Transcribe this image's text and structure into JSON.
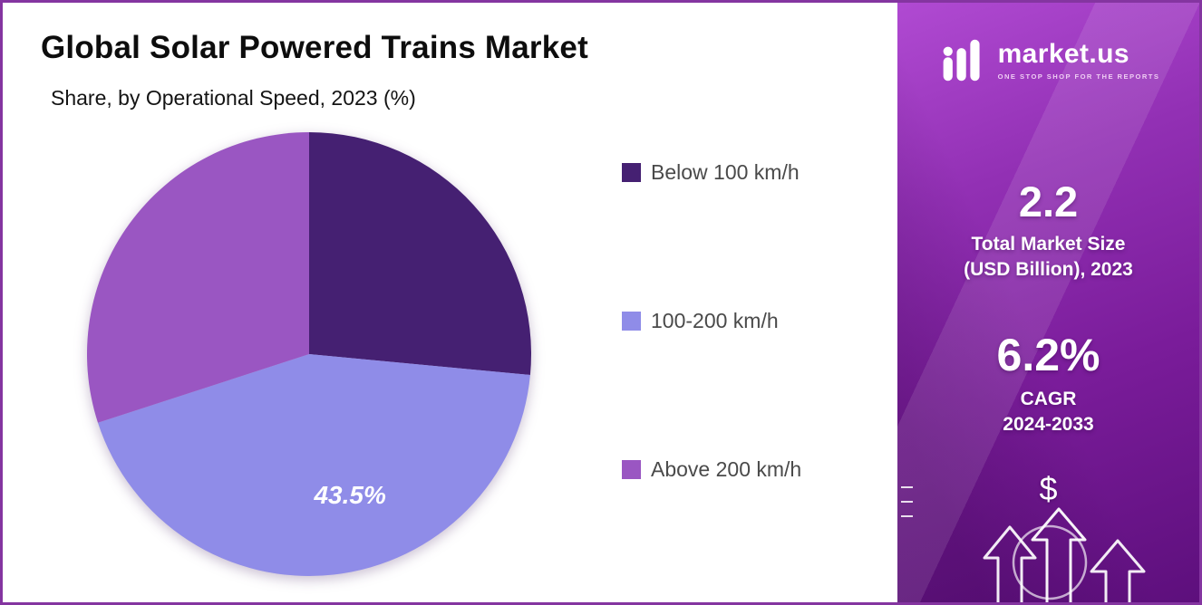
{
  "header": {
    "title": "Global Solar Powered Trains Market",
    "subtitle": "Share, by Operational Speed, 2023 (%)"
  },
  "chart_data": {
    "type": "pie",
    "title": "Global Solar Powered Trains Market",
    "subtitle": "Share, by Operational Speed, 2023 (%)",
    "labels": [
      "Below 100 km/h",
      "100-200 km/h",
      "Above 200 km/h"
    ],
    "values": [
      26.5,
      43.5,
      30
    ],
    "value_labels": [
      "",
      "43.5%",
      ""
    ],
    "colors": [
      "#452072",
      "#8f8ce8",
      "#9a56c2"
    ],
    "start_angle_deg": 0,
    "direction": "clockwise",
    "legend_position": "right"
  },
  "sidebar": {
    "brand": {
      "name": "market.us",
      "tagline": "ONE STOP SHOP FOR THE REPORTS"
    },
    "stats": [
      {
        "value": "2.2",
        "label_line1": "Total Market Size",
        "label_line2": "(USD Billion), 2023"
      },
      {
        "value": "6.2%",
        "label_line1": "CAGR",
        "label_line2": "2024-2033"
      }
    ],
    "dollar_symbol": "$",
    "colors": {
      "panel_top": "#b04ad2",
      "panel_bottom": "#5d0f7c",
      "accent_border": "#8435a0"
    }
  }
}
